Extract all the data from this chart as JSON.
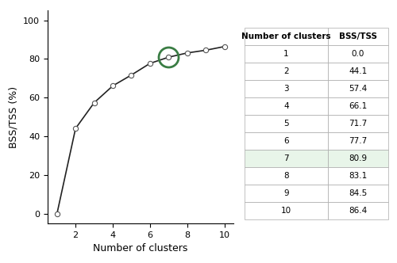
{
  "x": [
    1,
    2,
    3,
    4,
    5,
    6,
    7,
    8,
    9,
    10
  ],
  "y": [
    0.0,
    44.1,
    57.4,
    66.1,
    71.7,
    77.7,
    80.9,
    83.1,
    84.5,
    86.4
  ],
  "elbow_k": 7,
  "elbow_y": 80.9,
  "xlabel": "Number of clusters",
  "ylabel": "BSS/TSS (%)",
  "xlim": [
    0.5,
    10.5
  ],
  "ylim": [
    -5,
    105
  ],
  "xticks": [
    2,
    4,
    6,
    8,
    10
  ],
  "yticks": [
    0,
    20,
    40,
    60,
    80,
    100
  ],
  "line_color": "#222222",
  "marker_color": "#ffffff",
  "marker_edge_color": "#555555",
  "elbow_circle_color": "#3a7d44",
  "table_headers": [
    "Number of clusters",
    "BSS/TSS"
  ],
  "table_rows": [
    [
      "1",
      "0.0"
    ],
    [
      "2",
      "44.1"
    ],
    [
      "3",
      "57.4"
    ],
    [
      "4",
      "66.1"
    ],
    [
      "5",
      "71.7"
    ],
    [
      "6",
      "77.7"
    ],
    [
      "7",
      "80.9"
    ],
    [
      "8",
      "83.1"
    ],
    [
      "9",
      "84.5"
    ],
    [
      "10",
      "86.4"
    ]
  ],
  "highlight_row": 6,
  "highlight_color": "#e8f5e9",
  "fig_width": 5.0,
  "fig_height": 3.32,
  "dpi": 100
}
